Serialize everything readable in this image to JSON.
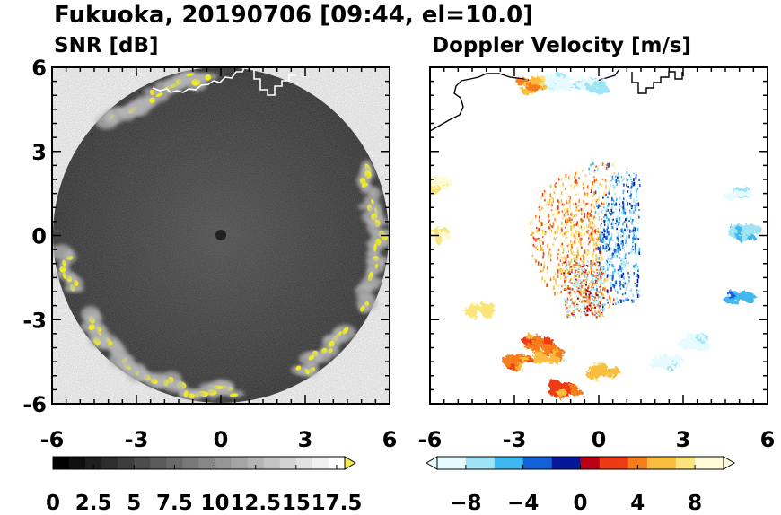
{
  "title": "Fukuoka, 20190706 [09:44, el=10.0]",
  "chart_data": [
    {
      "type": "heatmap",
      "title": "SNR [dB]",
      "xlabel": "",
      "ylabel": "",
      "xlim": [
        -6,
        6
      ],
      "ylim": [
        -6,
        6
      ],
      "x_ticks": [
        "-6",
        "-3",
        "0",
        "3",
        "6"
      ],
      "y_ticks": [
        "6",
        "3",
        "0",
        "-3",
        "-6"
      ],
      "colorbar": {
        "range": [
          0,
          18
        ],
        "ticks": [
          "0",
          "2.5",
          "5",
          "7.5",
          "10",
          "12.5",
          "15",
          "17.5"
        ],
        "colors": [
          "#000000",
          "#ffffff"
        ],
        "extend_color": "#f5e84c"
      },
      "echo_color": "#f2ee1a"
    },
    {
      "type": "heatmap",
      "title": "Doppler Velocity [m/s]",
      "xlabel": "",
      "ylabel": "",
      "xlim": [
        -6,
        6
      ],
      "ylim": [
        -6,
        6
      ],
      "x_ticks": [
        "-6",
        "-3",
        "0",
        "3",
        "6"
      ],
      "y_ticks": [],
      "colorbar": {
        "range": [
          -10,
          10
        ],
        "ticks": [
          "−8",
          "−4",
          "0",
          "4",
          "8"
        ],
        "colors_negative": [
          "#e6fbff",
          "#9fe4f5",
          "#3fb7ef",
          "#1560d8",
          "#06179a"
        ],
        "colors_positive": [
          "#bb0015",
          "#ee3a14",
          "#f57d1c",
          "#f9be3c",
          "#fbe47a",
          "#fffbd8"
        ]
      },
      "echoes": [
        {
          "x": -2.35,
          "y": 5.35,
          "v": 6
        },
        {
          "x": -1.5,
          "y": 5.45,
          "v": -9
        },
        {
          "x": -0.3,
          "y": 5.35,
          "v": -8
        },
        {
          "x": 4.85,
          "y": 1.5,
          "v": -8
        },
        {
          "x": 5.2,
          "y": 0.1,
          "v": -6
        },
        {
          "x": 5.1,
          "y": -2.2,
          "v": -5
        },
        {
          "x": 3.3,
          "y": -3.8,
          "v": -9
        },
        {
          "x": 2.4,
          "y": -4.5,
          "v": -9
        },
        {
          "x": 0.2,
          "y": -4.9,
          "v": 6
        },
        {
          "x": -1.2,
          "y": -5.5,
          "v": 4
        },
        {
          "x": -4.3,
          "y": -2.6,
          "v": 8
        },
        {
          "x": -3.0,
          "y": -4.5,
          "v": 4
        },
        {
          "x": -1.7,
          "y": -4.3,
          "v": 5
        },
        {
          "x": -2.1,
          "y": -3.8,
          "v": 4
        },
        {
          "x": -5.7,
          "y": 1.8,
          "v": 8
        },
        {
          "x": -5.9,
          "y": 0.0,
          "v": 8
        }
      ]
    }
  ]
}
